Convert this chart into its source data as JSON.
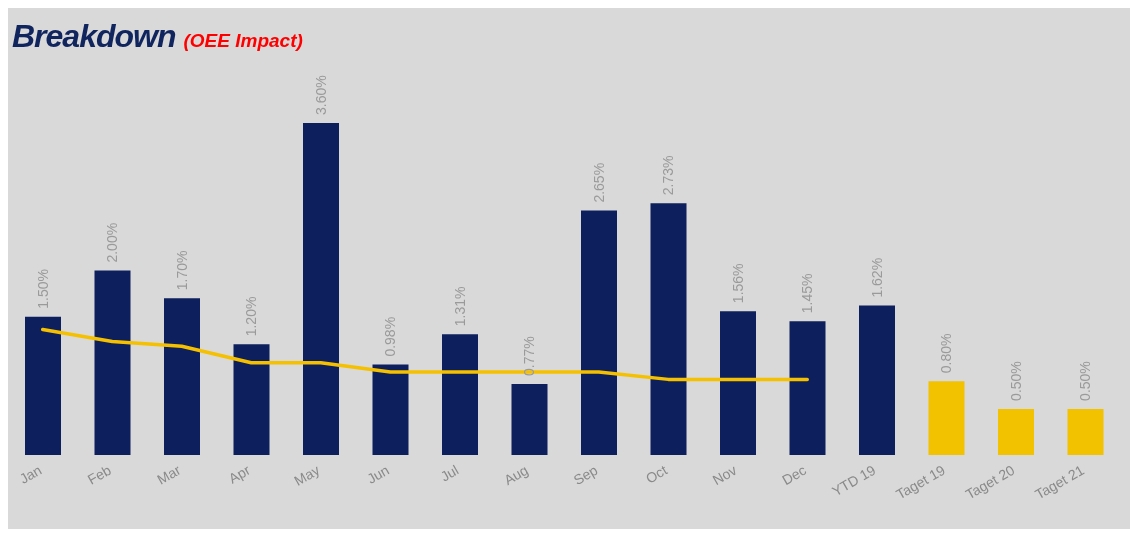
{
  "chart_data": {
    "type": "bar",
    "title": "Breakdown",
    "subtitle": "(OEE Impact)",
    "categories": [
      "Jan",
      "Feb",
      "Mar",
      "Apr",
      "May",
      "Jun",
      "Jul",
      "Aug",
      "Sep",
      "Oct",
      "Nov",
      "Dec",
      "YTD 19",
      "Taget 19",
      "Taget 20",
      "Taget 21"
    ],
    "series": [
      {
        "colors": [
          "#0d1f5c",
          "#0d1f5c",
          "#0d1f5c",
          "#0d1f5c",
          "#0d1f5c",
          "#0d1f5c",
          "#0d1f5c",
          "#0d1f5c",
          "#0d1f5c",
          "#0d1f5c",
          "#0d1f5c",
          "#0d1f5c",
          "#0d1f5c",
          "#f2c200",
          "#f2c200",
          "#f2c200"
        ],
        "values": [
          1.5,
          2.0,
          1.7,
          1.2,
          3.6,
          0.98,
          1.31,
          0.77,
          2.65,
          2.73,
          1.56,
          1.45,
          1.62,
          0.8,
          0.5,
          0.5
        ],
        "value_labels": [
          "1.50%",
          "2.00%",
          "1.70%",
          "1.20%",
          "3.60%",
          "0.98%",
          "1.31%",
          "0.77%",
          "2.65%",
          "2.73%",
          "1.56%",
          "1.45%",
          "1.62%",
          "0.80%",
          "0.50%",
          "0.50%"
        ]
      },
      {
        "type": "line",
        "color": "#f5c000",
        "values": [
          1.36,
          1.23,
          1.18,
          1.0,
          1.0,
          0.9,
          0.9,
          0.9,
          0.9,
          0.82,
          0.82,
          0.82,
          null,
          null,
          null,
          null
        ]
      }
    ],
    "legend": false,
    "grid": false,
    "tick_labels": "x",
    "marker": "none",
    "line_style": "solid"
  }
}
